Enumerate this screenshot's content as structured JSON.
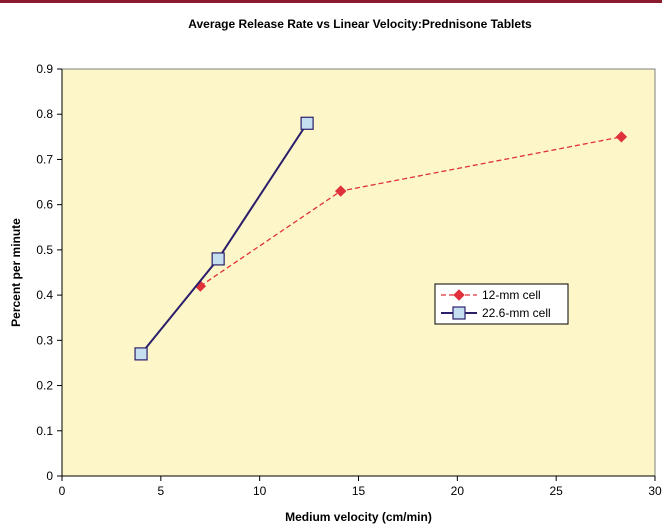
{
  "chart_data": {
    "type": "line",
    "title": "Average Release Rate vs Linear Velocity:Prednisone Tablets",
    "xlabel": "Medium velocity (cm/min)",
    "ylabel": "Percent per minute",
    "xlim": [
      0,
      30
    ],
    "ylim": [
      0,
      0.9
    ],
    "xticks": [
      0,
      5,
      10,
      15,
      20,
      25,
      30
    ],
    "yticks": [
      0,
      0.1,
      0.2,
      0.3,
      0.4,
      0.5,
      0.6,
      0.7,
      0.8,
      0.9
    ],
    "grid": false,
    "legend_position": "center-right",
    "series": [
      {
        "name": "12-mm cell",
        "color": "#e0313a",
        "line_style": "dashed",
        "marker": "diamond",
        "x": [
          7.0,
          14.1,
          28.3
        ],
        "y": [
          0.42,
          0.63,
          0.75
        ]
      },
      {
        "name": "22.6-mm cell",
        "color": "#2b1f6b",
        "marker_fill": "#c5dff0",
        "line_style": "solid",
        "marker": "square",
        "x": [
          4.0,
          7.9,
          12.4
        ],
        "y": [
          0.27,
          0.48,
          0.78
        ]
      }
    ]
  },
  "colors": {
    "plot_background": "#fdf6c9",
    "top_rule": "#8b1a2e"
  }
}
